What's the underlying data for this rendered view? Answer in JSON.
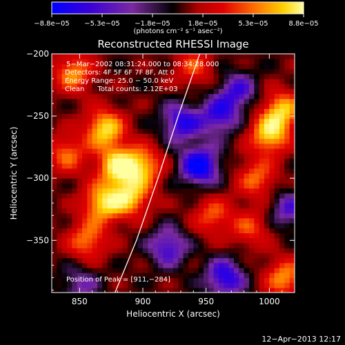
{
  "colorbar": {
    "tick_labels": [
      "−8.8e−05",
      "−5.3e−05",
      "−1.8e−05",
      "1.8e−05",
      "5.3e−05",
      "8.8e−05"
    ],
    "units": "(photons cm⁻² s⁻¹ asec⁻²)",
    "range": [
      -8.8e-05,
      8.8e-05
    ],
    "colors": [
      "#0000ff",
      "#3a00d8",
      "#7a2aa0",
      "#000000",
      "#b00000",
      "#e00000",
      "#ff6a00",
      "#ffd000",
      "#ffffa0"
    ]
  },
  "plot": {
    "title": "Reconstructed RHESSI Image",
    "xlabel": "Heliocentric X (arcsec)",
    "ylabel": "Heliocentric Y (arcsec)",
    "xticks": [
      "850",
      "900",
      "950",
      "1000"
    ],
    "yticks": [
      "−200",
      "−250",
      "−300",
      "−350"
    ],
    "xlim": [
      828,
      1020
    ],
    "ylim": [
      -392,
      -200
    ],
    "annotation_lines": [
      "5−Mar−2002 08:31:24.000 to 08:34:28.000",
      "Detectors: 4F 5F 6F 7F 8F, Att 0",
      "Energy Range: 25.0 − 50.0 keV",
      "Clean      Total counts: 2.12E+03"
    ],
    "peak_label": "Position of Peak = [911,−284]"
  },
  "footer": {
    "date": "12−Apr−2013 12:17"
  },
  "chart_data": {
    "type": "heatmap",
    "title": "Reconstructed RHESSI Image",
    "xlabel": "Heliocentric X (arcsec)",
    "ylabel": "Heliocentric Y (arcsec)",
    "xlim": [
      828,
      1020
    ],
    "ylim": [
      -392,
      -200
    ],
    "color_range": [
      -8.8e-05,
      8.8e-05
    ],
    "peak_position": [
      911,
      -284
    ],
    "limb_curve": [
      [
        878,
        -392
      ],
      [
        895,
        -350
      ],
      [
        912,
        -300
      ],
      [
        928,
        -250
      ],
      [
        945,
        -200
      ]
    ],
    "sources": [
      {
        "x": 870,
        "y": -260,
        "amplitude": 8.5e-05
      },
      {
        "x": 880,
        "y": -290,
        "amplitude": 8.8e-05
      },
      {
        "x": 868,
        "y": -320,
        "amplitude": 8e-05
      },
      {
        "x": 890,
        "y": -315,
        "amplitude": 7.5e-05
      },
      {
        "x": 900,
        "y": -290,
        "amplitude": 7e-05
      },
      {
        "x": 856,
        "y": -350,
        "amplitude": 6e-05
      },
      {
        "x": 840,
        "y": -280,
        "amplitude": 5.5e-05
      },
      {
        "x": 845,
        "y": -215,
        "amplitude": 6.5e-05
      },
      {
        "x": 1000,
        "y": -265,
        "amplitude": 8e-05
      },
      {
        "x": 1010,
        "y": -245,
        "amplitude": 7.5e-05
      },
      {
        "x": 990,
        "y": -300,
        "amplitude": 5.5e-05
      },
      {
        "x": 985,
        "y": -340,
        "amplitude": 4.5e-05
      },
      {
        "x": 1012,
        "y": -380,
        "amplitude": 6.5e-05
      },
      {
        "x": 955,
        "y": -330,
        "amplitude": 5e-05
      },
      {
        "x": 940,
        "y": -210,
        "amplitude": 4.5e-05
      },
      {
        "x": 930,
        "y": -255,
        "amplitude": -6e-05
      },
      {
        "x": 945,
        "y": -290,
        "amplitude": -8e-05
      },
      {
        "x": 960,
        "y": -250,
        "amplitude": -5.5e-05
      },
      {
        "x": 920,
        "y": -355,
        "amplitude": -5.5e-05
      },
      {
        "x": 965,
        "y": -380,
        "amplitude": -6.5e-05
      },
      {
        "x": 975,
        "y": -230,
        "amplitude": -5e-05
      },
      {
        "x": 850,
        "y": -385,
        "amplitude": -3.5e-05
      },
      {
        "x": 1015,
        "y": -325,
        "amplitude": -4.5e-05
      }
    ]
  }
}
